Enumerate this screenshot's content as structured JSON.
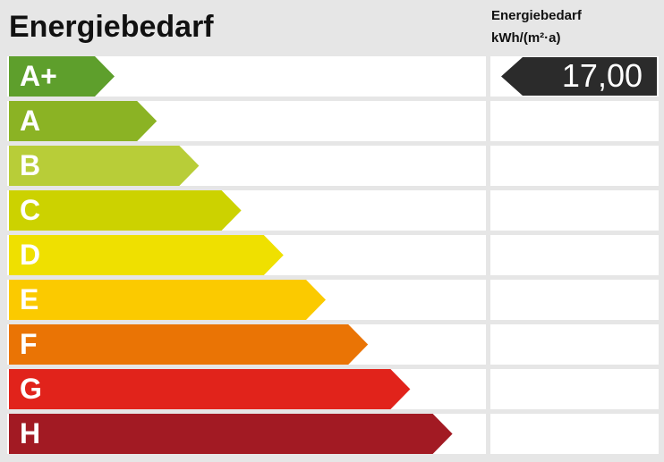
{
  "title": "Energiebedarf",
  "header": {
    "line1": "Energiebedarf",
    "line2": "kWh/(m²·a)"
  },
  "classes": [
    {
      "label": "A+",
      "color": "#5e9f2c",
      "value": "17,00"
    },
    {
      "label": "A",
      "color": "#8bb324"
    },
    {
      "label": "B",
      "color": "#b8cd38"
    },
    {
      "label": "C",
      "color": "#ccd200"
    },
    {
      "label": "D",
      "color": "#efe000"
    },
    {
      "label": "E",
      "color": "#fbca00"
    },
    {
      "label": "F",
      "color": "#ea7405"
    },
    {
      "label": "G",
      "color": "#e1231b"
    },
    {
      "label": "H",
      "color": "#a21a23"
    }
  ]
}
